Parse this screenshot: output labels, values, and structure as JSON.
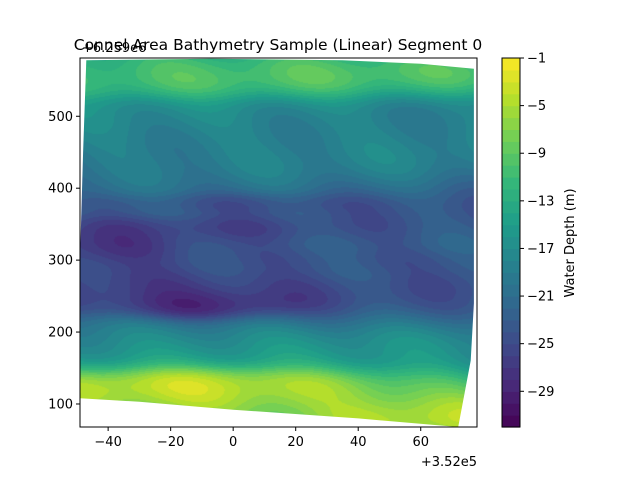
{
  "chart_data": {
    "type": "heatmap",
    "title": "Connel Area Bathymetry Sample (Linear) Segment 0",
    "xlabel": "",
    "ylabel": "",
    "x_offset_label": "+3.52e5",
    "y_offset_label": "+6.259e6",
    "xlim": [
      -49,
      78
    ],
    "ylim": [
      68,
      581
    ],
    "x_ticks": [
      -40,
      -20,
      0,
      20,
      40,
      60
    ],
    "y_ticks": [
      100,
      200,
      300,
      400,
      500
    ],
    "colorbar": {
      "label": "Water Depth (m)",
      "range": [
        -32,
        -1
      ],
      "ticks": [
        -1,
        -5,
        -9,
        -13,
        -17,
        -21,
        -25,
        -29
      ],
      "colormap": "viridis"
    },
    "grid": false,
    "data_outline": [
      [
        -47,
        578
      ],
      [
        -7,
        580
      ],
      [
        35,
        578
      ],
      [
        60,
        573
      ],
      [
        77,
        566
      ],
      [
        77,
        240
      ],
      [
        76,
        160
      ],
      [
        72,
        68
      ],
      [
        40,
        80
      ],
      [
        0,
        92
      ],
      [
        -30,
        103
      ],
      [
        -49,
        108
      ],
      [
        -49,
        300
      ],
      [
        -48,
        450
      ]
    ],
    "depth_features": [
      {
        "center": [
          -10,
          122
        ],
        "radius": [
          40,
          22
        ],
        "depth": -1
      },
      {
        "center": [
          -5,
          112
        ],
        "radius": [
          85,
          40
        ],
        "depth": -3
      },
      {
        "center": [
          60,
          85
        ],
        "radius": [
          30,
          25
        ],
        "depth": -2
      },
      {
        "center": [
          0,
          560
        ],
        "radius": [
          110,
          30
        ],
        "depth": -8
      },
      {
        "center": [
          -10,
          185
        ],
        "radius": [
          95,
          35
        ],
        "depth": -15
      },
      {
        "center": [
          10,
          460
        ],
        "radius": [
          100,
          60
        ],
        "depth": -16
      },
      {
        "center": [
          20,
          330
        ],
        "radius": [
          130,
          120
        ],
        "depth": -24
      },
      {
        "center": [
          -25,
          265
        ],
        "radius": [
          55,
          30
        ],
        "depth": -30
      },
      {
        "center": [
          -10,
          240
        ],
        "radius": [
          25,
          18
        ],
        "depth": -31
      },
      {
        "center": [
          -40,
          320
        ],
        "radius": [
          25,
          25
        ],
        "depth": -29
      },
      {
        "center": [
          -25,
          345
        ],
        "radius": [
          45,
          15
        ],
        "depth": -27
      },
      {
        "center": [
          0,
          380
        ],
        "radius": [
          40,
          12
        ],
        "depth": -26
      },
      {
        "center": [
          40,
          300
        ],
        "radius": [
          50,
          15
        ],
        "depth": -26
      },
      {
        "center": [
          70,
          280
        ],
        "radius": [
          15,
          20
        ],
        "depth": -25
      }
    ]
  }
}
